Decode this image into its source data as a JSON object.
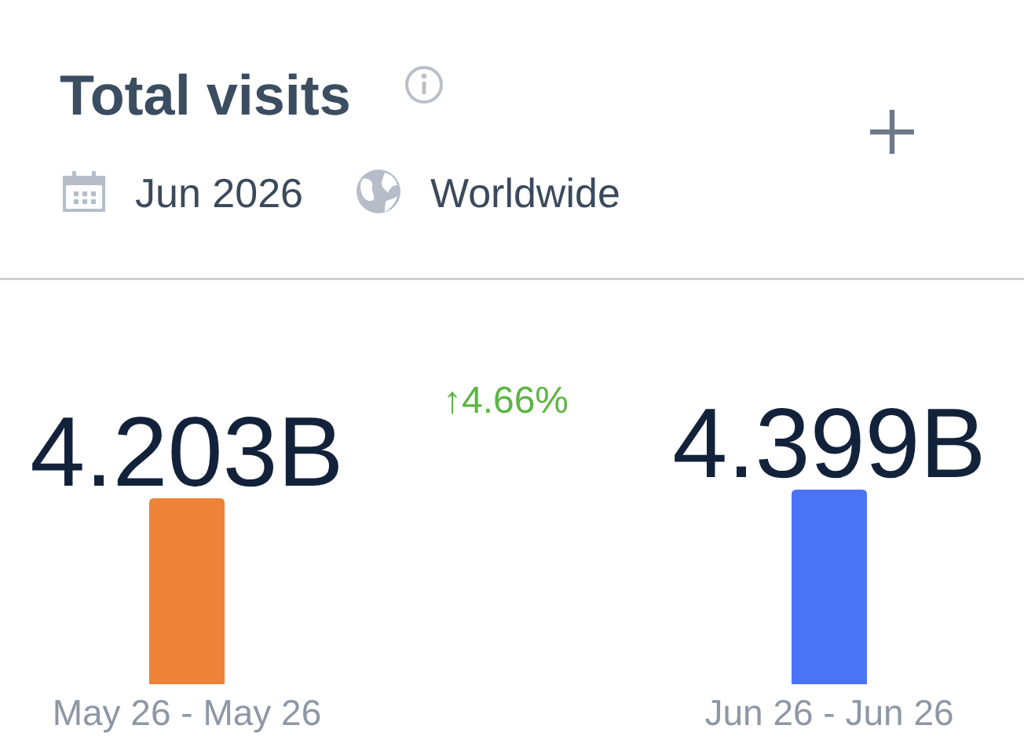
{
  "chart_data": {
    "type": "bar",
    "title": "Total visits",
    "annotations": [
      "Jun 2026",
      "Worldwide",
      "↑4.66%"
    ],
    "categories": [
      "May 26 - May 26",
      "Jun 26 - Jun 26"
    ],
    "values": [
      4.203,
      4.399
    ],
    "colors": [
      "#ee8239",
      "#4a74f5"
    ],
    "value_labels": [
      "4.203B",
      "4.399B"
    ]
  }
}
